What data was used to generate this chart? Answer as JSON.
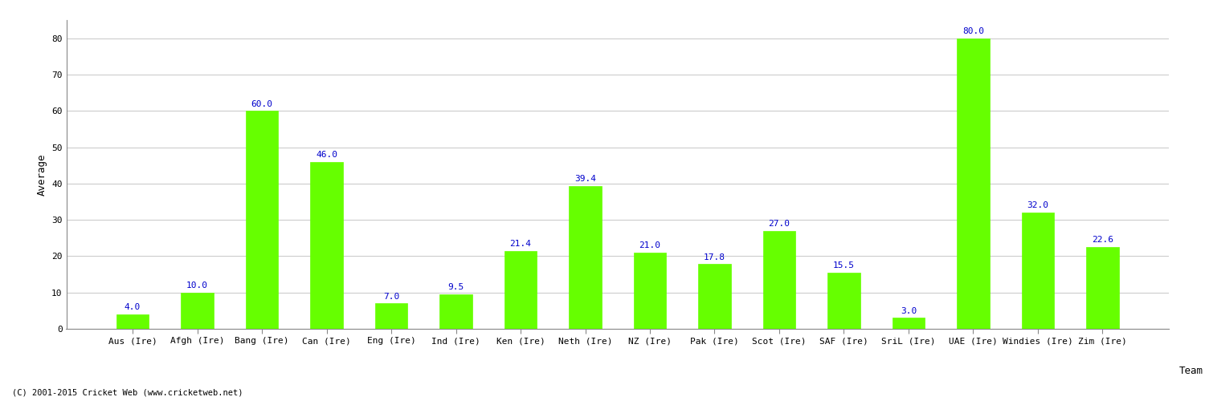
{
  "xlabel": "Team",
  "ylabel": "Average",
  "categories": [
    "Aus (Ire)",
    "Afgh (Ire)",
    "Bang (Ire)",
    "Can (Ire)",
    "Eng (Ire)",
    "Ind (Ire)",
    "Ken (Ire)",
    "Neth (Ire)",
    "NZ (Ire)",
    "Pak (Ire)",
    "Scot (Ire)",
    "SAF (Ire)",
    "SriL (Ire)",
    "UAE (Ire)",
    "Windies (Ire)",
    "Zim (Ire)"
  ],
  "values": [
    4.0,
    10.0,
    60.0,
    46.0,
    7.0,
    9.5,
    21.4,
    39.4,
    21.0,
    17.8,
    27.0,
    15.5,
    3.0,
    80.0,
    32.0,
    22.6
  ],
  "bar_color": "#66ff00",
  "bar_edge_color": "#66ff00",
  "label_color": "#0000cc",
  "background_color": "#ffffff",
  "grid_color": "#cccccc",
  "ylim": [
    0,
    85
  ],
  "yticks": [
    0,
    10,
    20,
    30,
    40,
    50,
    60,
    70,
    80
  ],
  "label_fontsize": 8,
  "axis_label_fontsize": 9,
  "tick_fontsize": 8,
  "footer_text": "(C) 2001-2015 Cricket Web (www.cricketweb.net)"
}
